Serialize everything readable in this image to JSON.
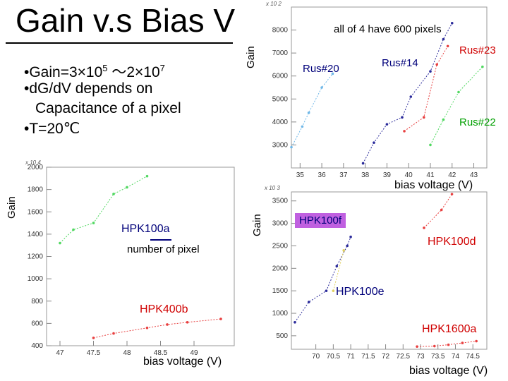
{
  "slide": {
    "title": "Gain v.s Bias V",
    "bullets": [
      {
        "base": "•Gain=3×10",
        "sup1": "5",
        "mid": " ～2×10",
        "sup2": "7"
      },
      {
        "text": "•d",
        "tail": "G/dV depends on"
      },
      {
        "text": "Capacitance of a pixel"
      },
      {
        "text": "•T=20℃"
      }
    ]
  },
  "chart_data": [
    {
      "id": "top-right",
      "type": "scatter",
      "title": "all of 4 have 600 pixels",
      "xlabel": "bias voltage (V)",
      "ylabel": "Gain",
      "multiplier": "x 10 2",
      "xlim": [
        34.6,
        43.6
      ],
      "ylim": [
        2000,
        9000
      ],
      "xticks": [
        "35",
        "36",
        "37",
        "38",
        "39",
        "40",
        "41",
        "42",
        "43"
      ],
      "yticks": [
        "3000",
        "4000",
        "5000",
        "6000",
        "7000",
        "8000"
      ],
      "series": [
        {
          "name": "Rus#20",
          "color": "#70b8e8",
          "x": [
            34.6,
            35.1,
            35.4,
            36.0,
            36.5
          ],
          "y": [
            2900,
            3800,
            4400,
            5500,
            6100
          ]
        },
        {
          "name": "Rus#14",
          "color": "#2a2a9a",
          "x": [
            37.9,
            38.4,
            39.0,
            39.7,
            40.1,
            41.0,
            41.6,
            42.0
          ],
          "y": [
            2200,
            3100,
            3900,
            4200,
            5100,
            6200,
            7600,
            8300
          ]
        },
        {
          "name": "Rus#23",
          "color": "#e84040",
          "x": [
            39.8,
            40.7,
            41.3,
            41.8
          ],
          "y": [
            3600,
            4200,
            6500,
            7300
          ]
        },
        {
          "name": "Rus#22",
          "color": "#50d860",
          "x": [
            41.0,
            41.6,
            42.3,
            43.4
          ],
          "y": [
            3000,
            4100,
            5300,
            6400
          ]
        }
      ]
    },
    {
      "id": "bottom-left",
      "type": "scatter",
      "xlabel": "bias voltage (V)",
      "ylabel": "Gain",
      "multiplier": "x 10 4",
      "xlim": [
        46.8,
        49.6
      ],
      "ylim": [
        400,
        2000
      ],
      "xticks": [
        "47",
        "47.5",
        "48",
        "48.5",
        "49"
      ],
      "yticks": [
        "400",
        "600",
        "800",
        "1000",
        "1200",
        "1400",
        "1600",
        "1800",
        "2000"
      ],
      "series": [
        {
          "name": "HPK100a",
          "color": "#50d860",
          "x": [
            47.0,
            47.2,
            47.5,
            47.8,
            48.0,
            48.3
          ],
          "y": [
            1320,
            1440,
            1500,
            1760,
            1820,
            1920
          ]
        },
        {
          "name": "HPK400b",
          "color": "#e84040",
          "x": [
            47.5,
            47.8,
            48.3,
            48.6,
            48.9,
            49.4
          ],
          "y": [
            470,
            510,
            560,
            590,
            610,
            640
          ]
        }
      ]
    },
    {
      "id": "bottom-right",
      "type": "scatter",
      "xlabel": "bias voltage (V)",
      "ylabel": "Gain",
      "multiplier": "x 10 3",
      "xlim": [
        69.3,
        74.9
      ],
      "ylim": [
        200,
        3700
      ],
      "xticks": [
        "70",
        "70.5",
        "71",
        "71.5",
        "72",
        "72.5",
        "73",
        "73.5",
        "74",
        "74.5"
      ],
      "yticks": [
        "500",
        "1000",
        "1500",
        "2000",
        "2500",
        "3000",
        "3500"
      ],
      "series": [
        {
          "name": "HPK100e",
          "color": "#2a2a9a",
          "x": [
            69.4,
            69.8,
            70.3,
            70.6,
            70.9,
            71.0
          ],
          "y": [
            800,
            1250,
            1500,
            2050,
            2500,
            2700
          ]
        },
        {
          "name": "HPK100f",
          "color": "#e0d060",
          "x": [
            70.5,
            70.8
          ],
          "y": [
            1500,
            2400
          ]
        },
        {
          "name": "HPK100d",
          "color": "#e84040",
          "x": [
            73.1,
            73.6,
            73.9
          ],
          "y": [
            2900,
            3300,
            3650
          ]
        },
        {
          "name": "HPK1600a",
          "color": "#e84040",
          "x": [
            72.9,
            73.4,
            73.8,
            74.2,
            74.6
          ],
          "y": [
            260,
            270,
            300,
            340,
            380
          ]
        }
      ]
    }
  ],
  "annotations": {
    "rus20": "Rus#20",
    "rus14": "Rus#14",
    "rus23": "Rus#23",
    "rus22": "Rus#22",
    "hpk100a": "HPK100a",
    "number_of_pixel": "number of pixel",
    "hpk400b": "HPK400b",
    "hpk100f": "HPK100f",
    "hpk100d": "HPK100d",
    "hpk100e": "HPK100e",
    "hpk1600a": "HPK1600a",
    "bias_tr": "bias voltage (V)",
    "bias_bl": "bias voltage (V)",
    "bias_br": "bias voltage (V)",
    "gain_tr": "Gain",
    "gain_bl": "Gain",
    "gain_br": "Gain"
  },
  "colors": {
    "label_blue": "#00007a",
    "label_red": "#d00000",
    "label_green": "#00a000",
    "hpk100f_bg": "#c060e0"
  }
}
